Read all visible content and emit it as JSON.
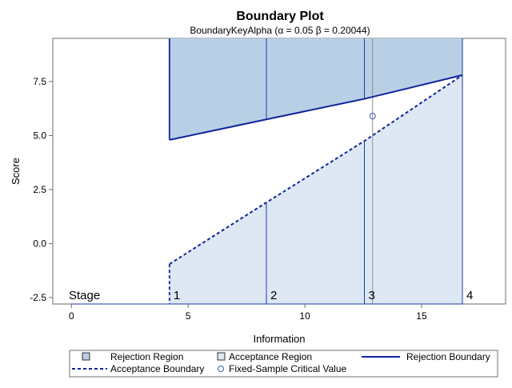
{
  "chart_data": {
    "type": "area",
    "title": "Boundary Plot",
    "subtitle": "BoundaryKeyAlpha (α = 0.05  β = 0.20044)",
    "xlabel": "Information",
    "ylabel": "Score",
    "xlim": [
      -0.8,
      18.6
    ],
    "ylim": [
      -2.8,
      9.5
    ],
    "xticks": [
      0,
      5,
      10,
      15
    ],
    "xtick_labels": [
      "0",
      "5",
      "10",
      "15"
    ],
    "yticks": [
      -2.5,
      0.0,
      2.5,
      5.0,
      7.5
    ],
    "ytick_labels": [
      "-2.5",
      "0.0",
      "2.5",
      "5.0",
      "7.5"
    ],
    "grid": false,
    "stage_label": "Stage",
    "stages": [
      {
        "label": "1",
        "information": 4.2,
        "rejection_boundary": 4.8,
        "acceptance_boundary": -0.95
      },
      {
        "label": "2",
        "information": 8.35,
        "rejection_boundary": 5.75,
        "acceptance_boundary": 1.9
      },
      {
        "label": "3",
        "information": 12.55,
        "rejection_boundary": 6.7,
        "acceptance_boundary": 4.75
      },
      {
        "label": "4",
        "information": 16.75,
        "rejection_boundary": 7.8,
        "acceptance_boundary": 7.8
      }
    ],
    "fixed_sample": {
      "information": 12.9,
      "critical_value": 5.9
    },
    "legend_position": "bottom",
    "legend": [
      {
        "key": "rejection_region",
        "label": "Rejection Region"
      },
      {
        "key": "acceptance_region",
        "label": "Acceptance Region"
      },
      {
        "key": "rejection_boundary",
        "label": "Rejection Boundary"
      },
      {
        "key": "acceptance_boundary",
        "label": "Acceptance Boundary"
      },
      {
        "key": "fixed_sample",
        "label": "Fixed-Sample Critical Value"
      }
    ],
    "colors": {
      "rejection_fill": "#b9cfe6",
      "acceptance_fill": "#dde8f4",
      "boundary_line": "#10249a",
      "stage_line": "#1e3aa0",
      "marker": "#3a56b0",
      "reference_line": "#909090",
      "axis": "#6e6e6e",
      "text": "#000000"
    }
  }
}
